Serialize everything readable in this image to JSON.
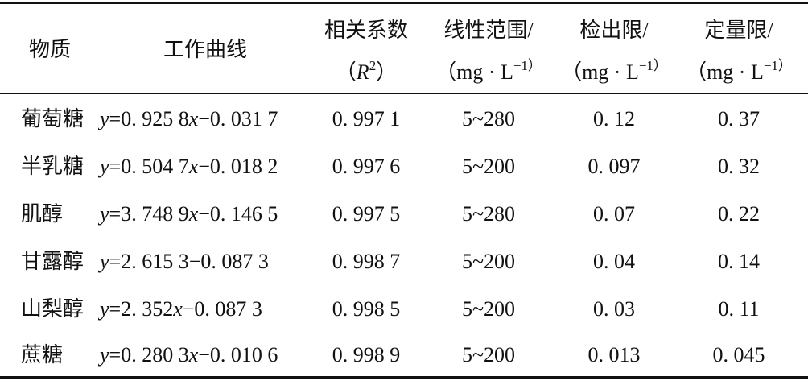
{
  "table": {
    "header": [
      {
        "lines": [
          [
            "物质"
          ]
        ]
      },
      {
        "lines": [
          [
            "工作曲线"
          ]
        ]
      },
      {
        "lines": [
          [
            "相关系数"
          ],
          [
            "（",
            "R",
            "2",
            "）"
          ]
        ]
      },
      {
        "lines": [
          [
            "线性范围/"
          ],
          [
            "（mg · L",
            "−1",
            "）"
          ]
        ]
      },
      {
        "lines": [
          [
            "检出限/"
          ],
          [
            "（mg · L",
            "−1",
            "）"
          ]
        ]
      },
      {
        "lines": [
          [
            "定量限/"
          ],
          [
            "（mg · L",
            "−1",
            "）"
          ]
        ]
      }
    ],
    "rows": [
      [
        "葡萄糖",
        [
          "y",
          "=0. 925 8",
          "x",
          "−0. 031 7"
        ],
        "0. 997 1",
        "5~280",
        "0. 12",
        "0. 37"
      ],
      [
        "半乳糖",
        [
          "y",
          "=0. 504 7",
          "x",
          "−0. 018 2"
        ],
        "0. 997 6",
        "5~200",
        "0. 097",
        "0. 32"
      ],
      [
        "肌醇",
        [
          "y",
          "=3. 748 9",
          "x",
          "−0. 146 5"
        ],
        "0. 997 5",
        "5~280",
        "0. 07",
        "0. 22"
      ],
      [
        "甘露醇",
        [
          "y",
          "=2. 615 3−0. 087 3"
        ],
        "0. 998 7",
        "5~200",
        "0. 04",
        "0. 14"
      ],
      [
        "山梨醇",
        [
          "y",
          "=2. 352",
          "x",
          "−0. 087 3"
        ],
        "0. 998 5",
        "5~200",
        "0. 03",
        "0. 11"
      ],
      [
        "蔗糖",
        [
          "y",
          "=0. 280 3",
          "x",
          "−0. 010 6"
        ],
        "0. 998 9",
        "5~200",
        "0. 013",
        "0. 045"
      ]
    ]
  }
}
